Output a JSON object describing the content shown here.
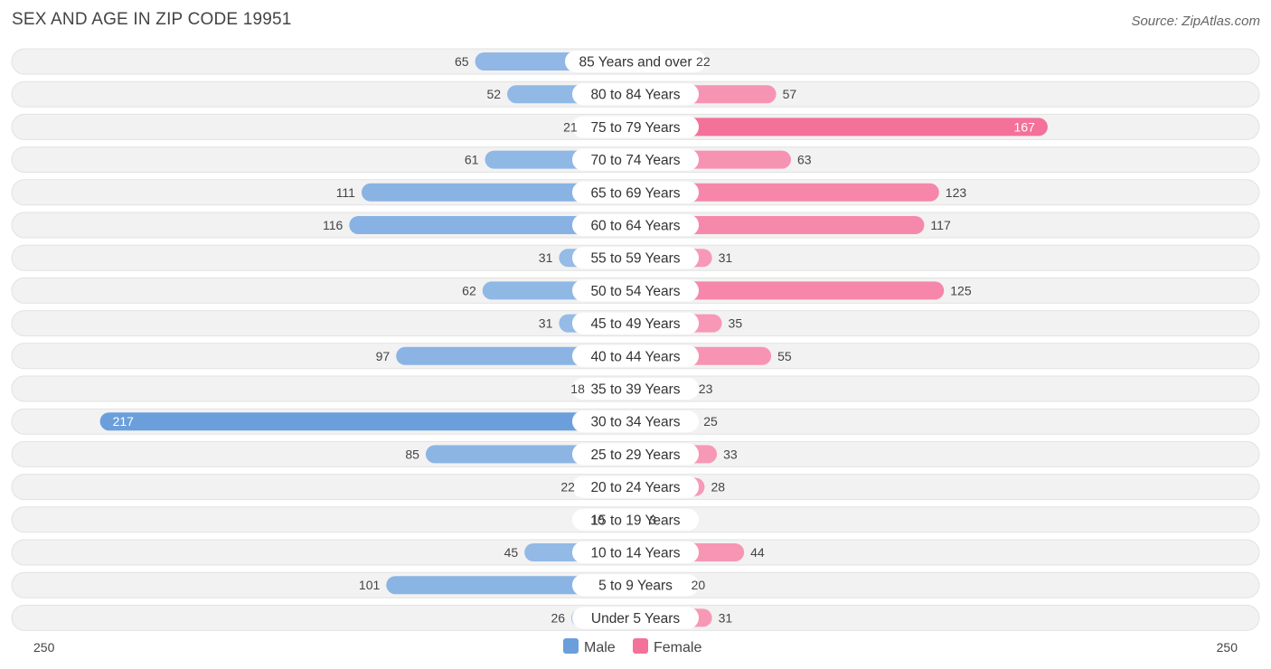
{
  "title": "SEX AND AGE IN ZIP CODE 19951",
  "source": "Source: ZipAtlas.com",
  "chart_data": {
    "type": "bar",
    "orientation": "horizontal-diverging",
    "title": "SEX AND AGE IN ZIP CODE 19951",
    "categories": [
      "85 Years and over",
      "80 to 84 Years",
      "75 to 79 Years",
      "70 to 74 Years",
      "65 to 69 Years",
      "60 to 64 Years",
      "55 to 59 Years",
      "50 to 54 Years",
      "45 to 49 Years",
      "40 to 44 Years",
      "35 to 39 Years",
      "30 to 34 Years",
      "25 to 29 Years",
      "20 to 24 Years",
      "15 to 19 Years",
      "10 to 14 Years",
      "5 to 9 Years",
      "Under 5 Years"
    ],
    "series": [
      {
        "name": "Male",
        "color": "#6a9fdc",
        "values": [
          65,
          52,
          21,
          61,
          111,
          116,
          31,
          62,
          31,
          97,
          18,
          217,
          85,
          22,
          10,
          45,
          101,
          26
        ]
      },
      {
        "name": "Female",
        "color": "#f4719a",
        "values": [
          22,
          57,
          167,
          63,
          123,
          117,
          31,
          125,
          35,
          55,
          23,
          25,
          33,
          28,
          3,
          44,
          20,
          31
        ]
      }
    ],
    "axis": {
      "left_label": "250",
      "right_label": "250",
      "max": 250
    },
    "legend": {
      "placement": "bottom-center",
      "items": [
        "Male",
        "Female"
      ]
    }
  }
}
